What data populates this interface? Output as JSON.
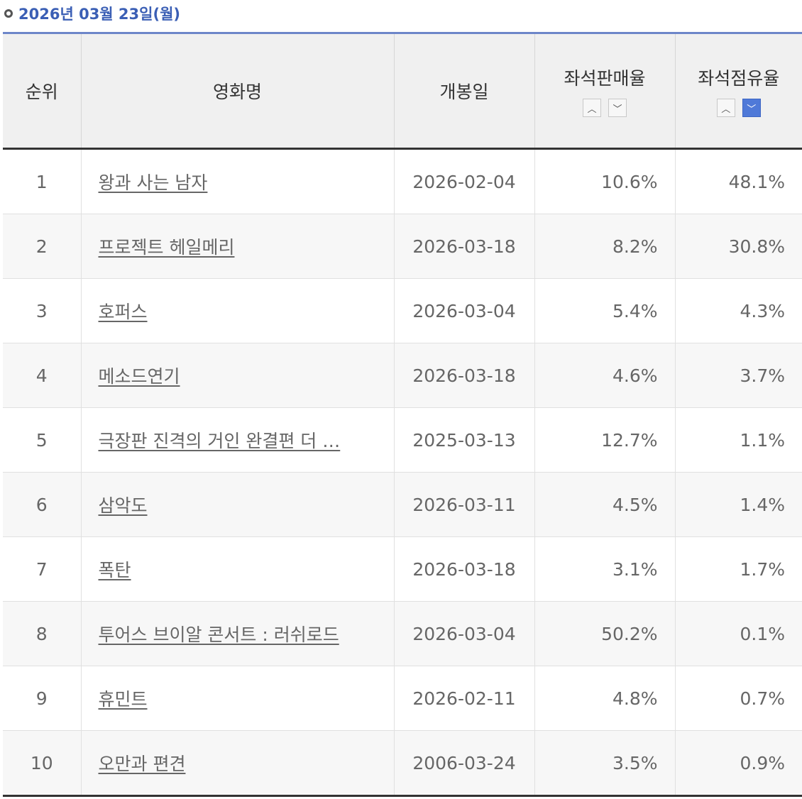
{
  "header": {
    "date": "2026년 03월 23일(월)"
  },
  "columns": {
    "rank": "순위",
    "title": "영화명",
    "release": "개봉일",
    "sales_rate": "좌석판매율",
    "share_rate": "좌석점유율"
  },
  "sort_icons": {
    "up": "chevron-up-icon",
    "down": "chevron-down-icon"
  },
  "colors": {
    "accent": "#3b5fb5",
    "active_sort": "#4f79d8"
  },
  "rows": [
    {
      "rank": "1",
      "title": "왕과 사는 남자",
      "release": "2026-02-04",
      "sales": "10.6%",
      "share": "48.1%"
    },
    {
      "rank": "2",
      "title": "프로젝트 헤일메리",
      "release": "2026-03-18",
      "sales": "8.2%",
      "share": "30.8%"
    },
    {
      "rank": "3",
      "title": "호퍼스",
      "release": "2026-03-04",
      "sales": "5.4%",
      "share": "4.3%"
    },
    {
      "rank": "4",
      "title": "메소드연기",
      "release": "2026-03-18",
      "sales": "4.6%",
      "share": "3.7%"
    },
    {
      "rank": "5",
      "title": "극장판 진격의 거인 완결편 더 …",
      "release": "2025-03-13",
      "sales": "12.7%",
      "share": "1.1%"
    },
    {
      "rank": "6",
      "title": "삼악도",
      "release": "2026-03-11",
      "sales": "4.5%",
      "share": "1.4%"
    },
    {
      "rank": "7",
      "title": "폭탄",
      "release": "2026-03-18",
      "sales": "3.1%",
      "share": "1.7%"
    },
    {
      "rank": "8",
      "title": "투어스 브이알 콘서트 : 러쉬로드",
      "release": "2026-03-04",
      "sales": "50.2%",
      "share": "0.1%"
    },
    {
      "rank": "9",
      "title": "휴민트",
      "release": "2026-02-11",
      "sales": "4.8%",
      "share": "0.7%"
    },
    {
      "rank": "10",
      "title": "오만과 편견",
      "release": "2006-03-24",
      "sales": "3.5%",
      "share": "0.9%"
    }
  ]
}
